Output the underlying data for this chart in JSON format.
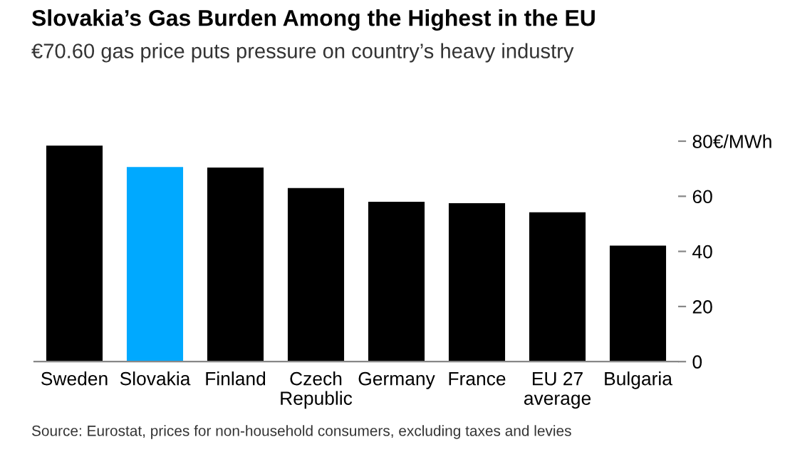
{
  "chart_data": {
    "type": "bar",
    "title": "Slovakia’s Gas Burden Among the Highest in the EU",
    "subtitle": "€70.60 gas price puts pressure on country’s heavy industry",
    "categories": [
      "Sweden",
      "Slovakia",
      "Finland",
      "Czech Republic",
      "Germany",
      "France",
      "EU 27 average",
      "Bulgaria"
    ],
    "values": [
      78.4,
      70.6,
      70.4,
      63.0,
      58.0,
      57.5,
      54.2,
      42.1
    ],
    "colors": [
      "#000000",
      "#00a9ff",
      "#000000",
      "#000000",
      "#000000",
      "#000000",
      "#000000",
      "#000000"
    ],
    "ylim": [
      0,
      80
    ],
    "yticks": [
      0,
      20,
      40,
      60,
      {
        "value": 80,
        "label": "80€/MWh"
      }
    ],
    "grid": false,
    "annotations": [
      "Source: Eurostat, prices for non-household consumers, excluding taxes and levies"
    ]
  }
}
